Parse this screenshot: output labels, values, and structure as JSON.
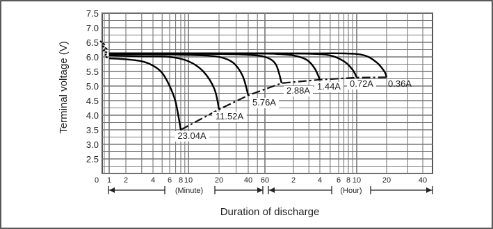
{
  "chart_data": {
    "type": "line",
    "title": "",
    "ylabel": "Terminal voltage (V)",
    "xlabel": "Duration of discharge",
    "ylim": [
      2.0,
      7.5
    ],
    "y_ticks": [
      "7.5",
      "7.0",
      "6.5",
      "6.0",
      "5.5",
      "5.0",
      "4.5",
      "4.0",
      "3.5",
      "3.0",
      "2.5"
    ],
    "x_ticks": [
      "0",
      "1",
      "2",
      "4",
      "6",
      "8",
      "10",
      "20",
      "40",
      "60",
      "2",
      "4",
      "6",
      "8",
      "10",
      "20",
      "40"
    ],
    "x_unit_labels": {
      "minute": "(Minute)",
      "hour": "(Hour)"
    },
    "grid": true,
    "series": [
      {
        "name": "23.04A",
        "label_style": "boxed",
        "points": [
          [
            1,
            5.95
          ],
          [
            2,
            5.92
          ],
          [
            3,
            5.85
          ],
          [
            4,
            5.7
          ],
          [
            5,
            5.45
          ],
          [
            6,
            5.0
          ],
          [
            7,
            4.45
          ],
          [
            8,
            3.5
          ]
        ]
      },
      {
        "name": "11.52A",
        "label_style": "boxed",
        "points": [
          [
            1,
            6.05
          ],
          [
            3,
            6.02
          ],
          [
            6,
            6.0
          ],
          [
            10,
            5.85
          ],
          [
            14,
            5.5
          ],
          [
            18,
            4.9
          ],
          [
            20,
            4.2
          ]
        ]
      },
      {
        "name": "5.76A",
        "label_style": "boxed",
        "points": [
          [
            1,
            6.1
          ],
          [
            6,
            6.08
          ],
          [
            12,
            6.06
          ],
          [
            20,
            6.0
          ],
          [
            28,
            5.8
          ],
          [
            35,
            5.35
          ],
          [
            40,
            4.68
          ]
        ]
      },
      {
        "name": "2.88A",
        "label_style": "boxed",
        "points": [
          [
            1,
            6.12
          ],
          [
            20,
            6.1
          ],
          [
            40,
            6.07
          ],
          [
            60,
            6.0
          ],
          [
            78,
            5.75
          ],
          [
            90,
            5.1
          ]
        ]
      },
      {
        "name": "1.44A",
        "label_style": "boxed",
        "points": [
          [
            1,
            6.12
          ],
          [
            40,
            6.12
          ],
          [
            80,
            6.1
          ],
          [
            120,
            6.05
          ],
          [
            170,
            5.9
          ],
          [
            210,
            5.6
          ],
          [
            240,
            5.22
          ]
        ]
      },
      {
        "name": "0.72A",
        "label_style": "boxed",
        "points": [
          [
            1,
            6.12
          ],
          [
            60,
            6.12
          ],
          [
            180,
            6.11
          ],
          [
            300,
            6.05
          ],
          [
            420,
            5.85
          ],
          [
            540,
            5.55
          ],
          [
            600,
            5.29
          ]
        ]
      },
      {
        "name": "0.36A",
        "label_style": "plain",
        "points": [
          [
            1,
            6.12
          ],
          [
            120,
            6.12
          ],
          [
            420,
            6.12
          ],
          [
            720,
            6.05
          ],
          [
            960,
            5.8
          ],
          [
            1140,
            5.5
          ],
          [
            1200,
            5.3
          ]
        ]
      }
    ],
    "cutoff_line": {
      "style": "dash-dot",
      "points": [
        [
          8,
          3.5
        ],
        [
          20,
          4.2
        ],
        [
          40,
          4.68
        ],
        [
          90,
          5.1
        ],
        [
          240,
          5.22
        ],
        [
          600,
          5.29
        ],
        [
          1200,
          5.3
        ]
      ]
    }
  }
}
